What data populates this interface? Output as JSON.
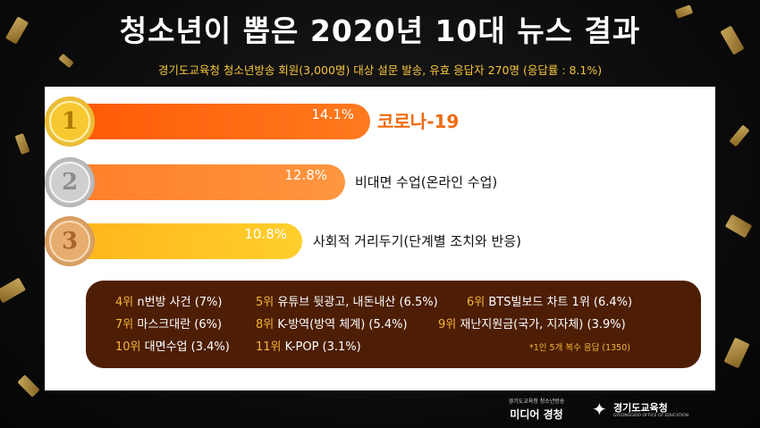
{
  "header": {
    "title": "청소년이 뽑은 2020년 10대 뉴스 결과",
    "subtitle": "경기도교육청 청소년방송 회원(3,000명) 대상 설문 발송, 유효 응답자 270명 (응답률 : 8.1%)"
  },
  "top3": [
    {
      "medal": "1",
      "percent": "14.1%",
      "value": 14.1,
      "label": "코로나-19"
    },
    {
      "medal": "2",
      "percent": "12.8%",
      "value": 12.8,
      "label": "비대면 수업(온라인 수업)"
    },
    {
      "medal": "3",
      "percent": "10.8%",
      "value": 10.8,
      "label": "사회적 거리두기(단계별 조치와 반응)"
    }
  ],
  "others": [
    {
      "rank": "4위",
      "text": "n번방 사건 (7%)"
    },
    {
      "rank": "5위",
      "text": "유튜브 뒷광고, 내돈내산 (6.5%)"
    },
    {
      "rank": "6위",
      "text": "BTS빌보드 차트 1위 (6.4%)"
    },
    {
      "rank": "7위",
      "text": "마스크대란 (6%)"
    },
    {
      "rank": "8위",
      "text": "K-방역(방역 체계) (5.4%)"
    },
    {
      "rank": "9위",
      "text": "재난지원금(국가, 지자체) (3.9%)"
    },
    {
      "rank": "10위",
      "text": "대면수업 (3.4%)"
    },
    {
      "rank": "11위",
      "text": "K-POP (3.1%)"
    }
  ],
  "note": "*1인 5개 복수 응답 (1350)",
  "footer": {
    "logo1_small": "경기도교육청 청소년방송",
    "logo1_main": "미디어 경청",
    "logo2_main": "경기도교육청",
    "logo2_small": "GYEONGGIDO OFFICE OF EDUCATION"
  },
  "colors": {
    "bar1": "#ff6a10",
    "bar2": "#ff8a3a",
    "bar3": "#ffc51e",
    "gold": "#f2c230",
    "silver": "#c8c8c8",
    "bronze": "#e0a86a",
    "brown_box": "#4d1e04",
    "accent_yellow": "#f4b63a",
    "top1_label": "#f06a10"
  }
}
